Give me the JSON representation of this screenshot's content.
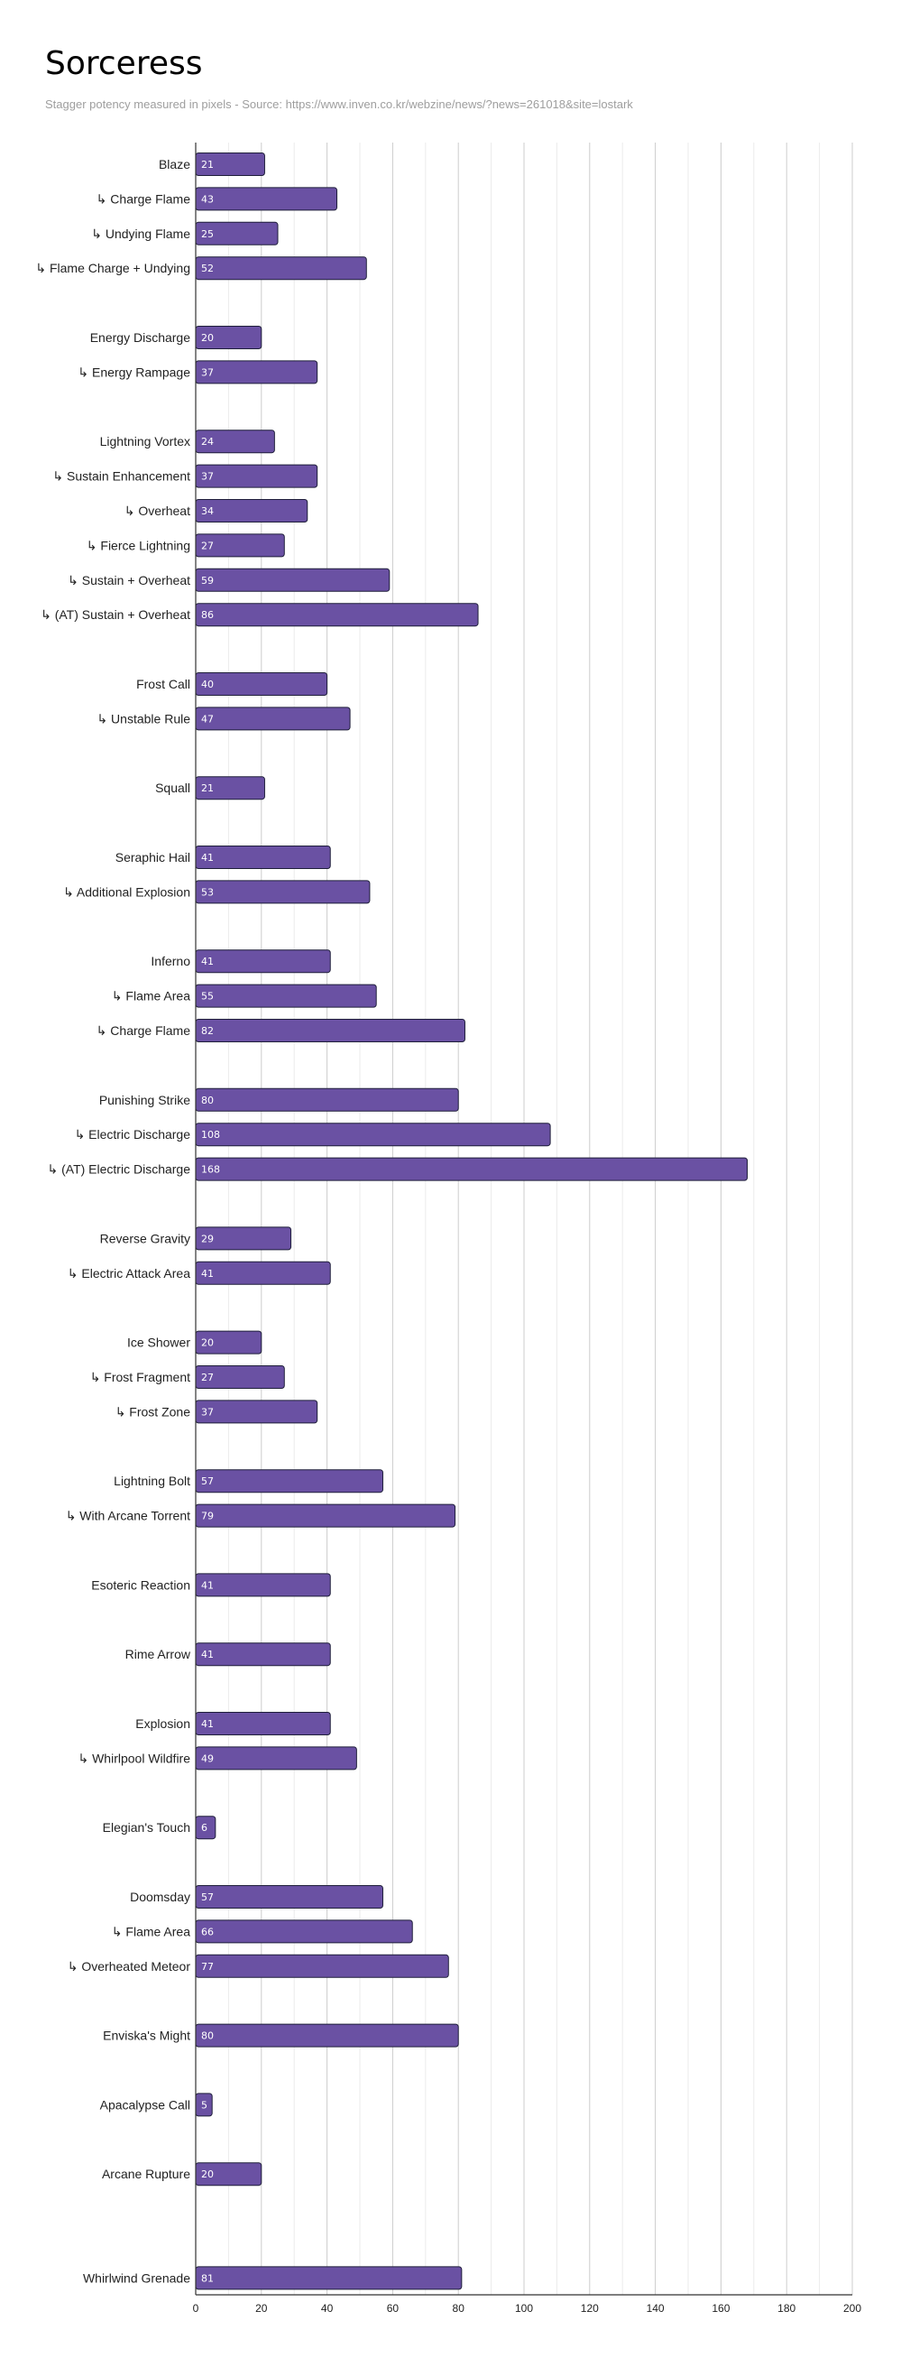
{
  "chart_data": {
    "type": "bar",
    "orientation": "horizontal",
    "title": "Sorceress",
    "subtitle": "Stagger potency measured in pixels - Source: https://www.inven.co.kr/webzine/news/?news=261018&site=lostark",
    "xlabel": "",
    "ylabel": "",
    "xlim": [
      0,
      200
    ],
    "ticks": [
      0,
      20,
      40,
      60,
      80,
      100,
      120,
      140,
      160,
      180,
      200
    ],
    "grid": true,
    "legend": "none",
    "bar_color": "#6a51a3",
    "bar_stroke": "#1f1f3a",
    "categories": [
      "Blaze",
      "↳ Charge Flame",
      "↳ Undying Flame",
      "↳ Flame Charge + Undying",
      "",
      "Energy Discharge",
      "↳ Energy Rampage",
      "",
      "Lightning Vortex",
      "↳ Sustain Enhancement",
      "↳ Overheat",
      "↳ Fierce Lightning",
      "↳ Sustain + Overheat",
      "↳ (AT) Sustain + Overheat",
      "",
      "Frost Call",
      "↳ Unstable Rule",
      "",
      "Squall",
      "",
      "Seraphic Hail",
      "↳ Additional Explosion",
      "",
      "Inferno",
      "↳ Flame Area",
      "↳ Charge Flame",
      "",
      "Punishing Strike",
      "↳ Electric Discharge",
      "↳ (AT) Electric Discharge",
      "",
      "Reverse Gravity",
      "↳ Electric Attack Area",
      "",
      "Ice Shower",
      "↳ Frost Fragment",
      "↳ Frost Zone",
      "",
      "Lightning Bolt",
      "↳ With Arcane Torrent",
      "",
      "Esoteric Reaction",
      "",
      "Rime Arrow",
      "",
      "Explosion",
      "↳ Whirlpool Wildfire",
      "",
      "Elegian's Touch",
      "",
      "Doomsday",
      "↳ Flame Area",
      "↳ Overheated Meteor",
      "",
      "Enviska's Might",
      "",
      "Apacalypse Call",
      "",
      "Arcane Rupture",
      "",
      "",
      "Whirlwind Grenade"
    ],
    "values": [
      21,
      43,
      25,
      52,
      null,
      20,
      37,
      null,
      24,
      37,
      34,
      27,
      59,
      86,
      null,
      40,
      47,
      null,
      21,
      null,
      41,
      53,
      null,
      41,
      55,
      82,
      null,
      80,
      108,
      168,
      null,
      29,
      41,
      null,
      20,
      27,
      37,
      null,
      57,
      79,
      null,
      41,
      null,
      41,
      null,
      41,
      49,
      null,
      6,
      null,
      57,
      66,
      77,
      null,
      80,
      null,
      5,
      null,
      20,
      null,
      null,
      81
    ]
  }
}
